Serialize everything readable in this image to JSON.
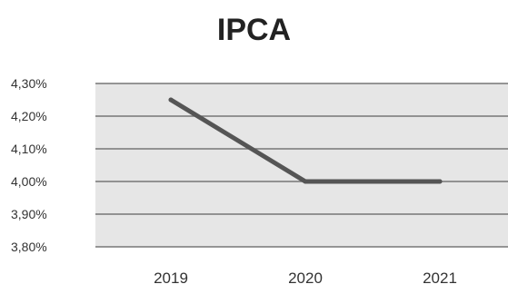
{
  "chart_data": {
    "type": "line",
    "title": "IPCA",
    "categories": [
      "2019",
      "2020",
      "2021"
    ],
    "series": [
      {
        "values": [
          4.25,
          4.0,
          4.0
        ]
      }
    ],
    "y_ticks": [
      "4,30%",
      "4,20%",
      "4,10%",
      "4,00%",
      "3,90%",
      "3,80%"
    ],
    "ylim": [
      3.8,
      4.3
    ],
    "grid": true,
    "colors": {
      "line": "#555555",
      "plot_bg": "#e6e6e6",
      "grid": "#777777"
    }
  }
}
